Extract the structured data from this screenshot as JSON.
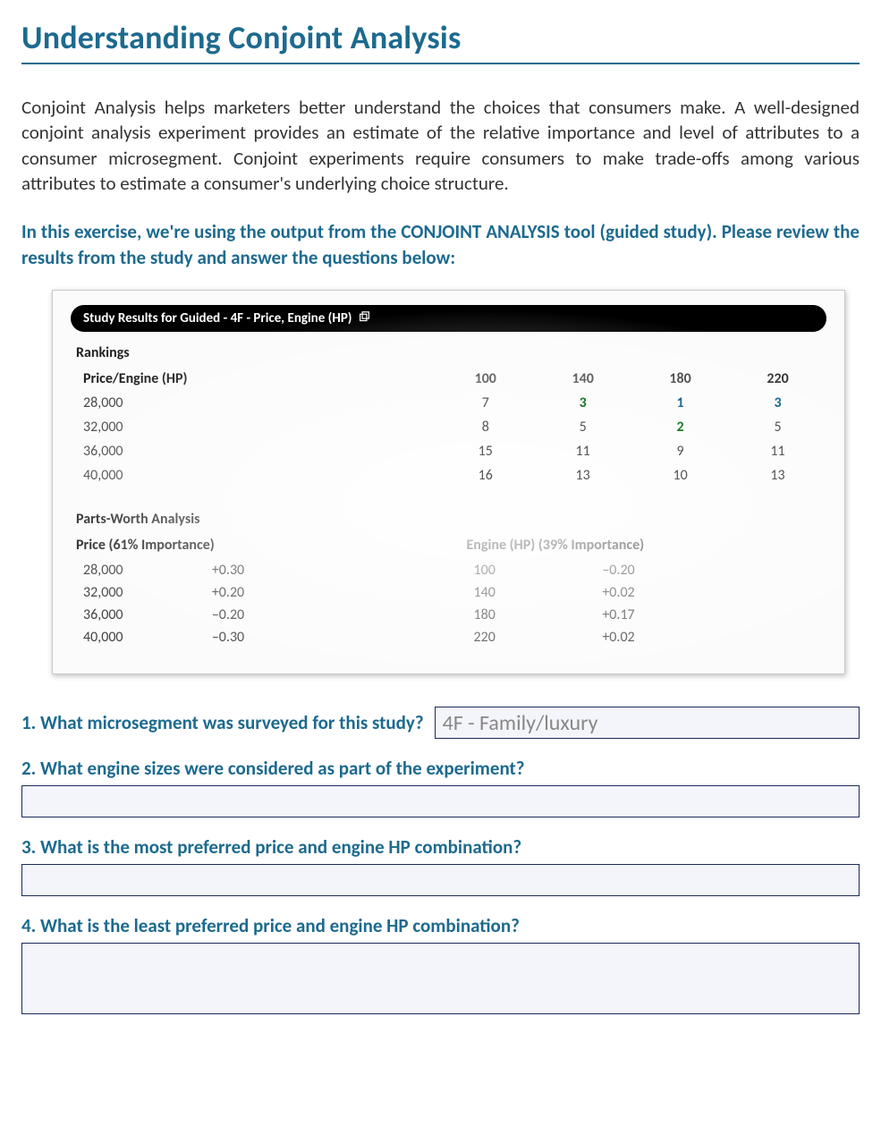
{
  "title": "Understanding Conjoint Analysis",
  "intro": "Conjoint Analysis helps marketers better understand the choices that consumers make.  A well-designed conjoint analysis experiment provides an estimate of the relative importance and level of attributes to a consumer microsegment.   Conjoint experiments require consumers to make trade-offs among various attributes to estimate a consumer's underlying choice structure.",
  "instruction": "In this exercise, we're using the output from the CONJOINT ANALYSIS tool (guided study). Please review the results from the study and answer the questions below:",
  "results": {
    "bar_title": "Study Results for Guided - 4F - Price, Engine (HP)",
    "rankings_label": "Rankings",
    "row_header": "Price/Engine (HP)",
    "col_levels": [
      "100",
      "140",
      "180",
      "220"
    ],
    "row_levels": [
      "28,000",
      "32,000",
      "36,000",
      "40,000"
    ],
    "cells": [
      [
        {
          "v": "7",
          "color": "#555555",
          "bold": false
        },
        {
          "v": "3",
          "color": "#1a7a2a",
          "bold": true
        },
        {
          "v": "1",
          "color": "#1d6a8f",
          "bold": true
        },
        {
          "v": "3",
          "color": "#1d6a8f",
          "bold": true
        }
      ],
      [
        {
          "v": "8",
          "color": "#555555",
          "bold": false
        },
        {
          "v": "5",
          "color": "#555555",
          "bold": false
        },
        {
          "v": "2",
          "color": "#1a7a2a",
          "bold": true
        },
        {
          "v": "5",
          "color": "#555555",
          "bold": false
        }
      ],
      [
        {
          "v": "15",
          "color": "#555555",
          "bold": false
        },
        {
          "v": "11",
          "color": "#555555",
          "bold": false
        },
        {
          "v": "9",
          "color": "#555555",
          "bold": false
        },
        {
          "v": "11",
          "color": "#555555",
          "bold": false
        }
      ],
      [
        {
          "v": "16",
          "color": "#555555",
          "bold": false
        },
        {
          "v": "13",
          "color": "#555555",
          "bold": false
        },
        {
          "v": "10",
          "color": "#555555",
          "bold": false
        },
        {
          "v": "13",
          "color": "#555555",
          "bold": false
        }
      ]
    ],
    "parts_worth_label": "Parts-Worth Analysis",
    "price_header": "Price (61% Importance)",
    "engine_header": "Engine (HP) (39% Importance)",
    "price_rows": [
      {
        "level": "28,000",
        "value": "+0.30"
      },
      {
        "level": "32,000",
        "value": "+0.20"
      },
      {
        "level": "36,000",
        "value": "–0.20"
      },
      {
        "level": "40,000",
        "value": "–0.30"
      }
    ],
    "engine_rows": [
      {
        "level": "100",
        "value": "–0.20"
      },
      {
        "level": "140",
        "value": "+0.02"
      },
      {
        "level": "180",
        "value": "+0.17"
      },
      {
        "level": "220",
        "value": "+0.02"
      }
    ]
  },
  "questions": {
    "q1": "1. What microsegment was surveyed for this study?",
    "q1_answer": "4F - Family/luxury",
    "q2": "2. What engine sizes were considered as part of the experiment?",
    "q3": "3. What is the most preferred price and engine HP combination?",
    "q4": "4. What is the least preferred price and engine HP combination?"
  }
}
